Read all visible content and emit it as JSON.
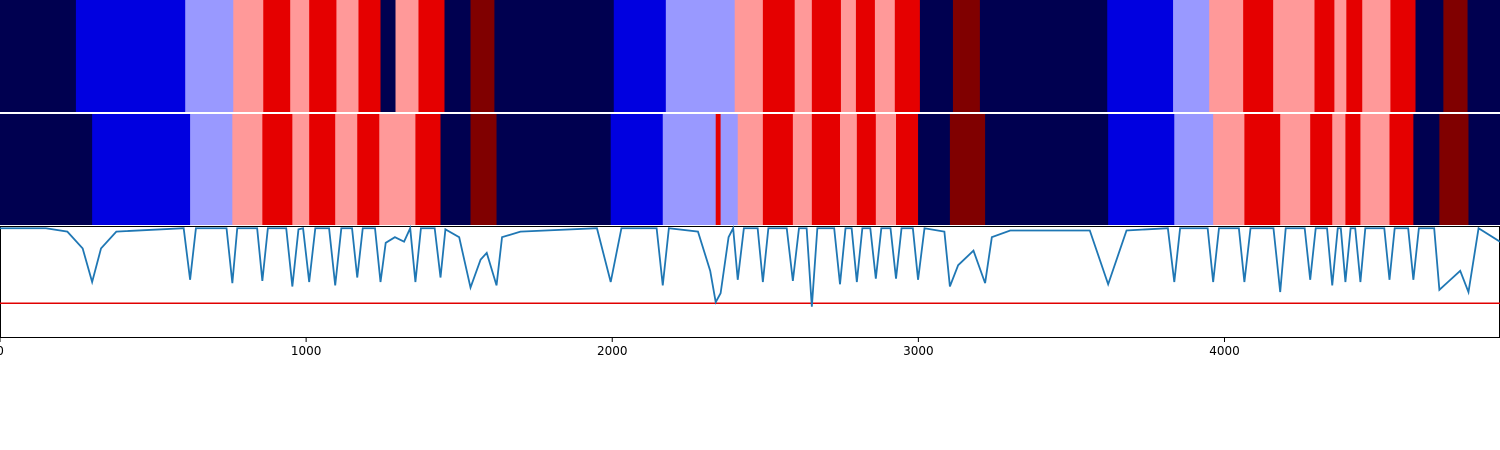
{
  "chart_data": [
    {
      "type": "segments",
      "state_colors": [
        "#000050",
        "#0000e0",
        "#9999ff",
        "#ff9999",
        "#e50000",
        "#800000"
      ],
      "xlim": [
        0,
        4900
      ],
      "boundaries": [
        0,
        248,
        605,
        762,
        860,
        948,
        1010,
        1099,
        1171,
        1243,
        1292,
        1367,
        1452,
        1537,
        1615,
        2005,
        2175,
        2400,
        2492,
        2596,
        2652,
        2747,
        2796,
        2858,
        2923,
        3005,
        3113,
        3201,
        3617,
        3832,
        3950,
        4061,
        4159,
        4294,
        4359,
        4398,
        4450,
        4542,
        4624,
        4715,
        4794,
        4900
      ],
      "states": [
        0,
        1,
        2,
        3,
        4,
        3,
        4,
        3,
        4,
        0,
        3,
        4,
        0,
        5,
        0,
        1,
        2,
        3,
        4,
        3,
        4,
        3,
        4,
        3,
        4,
        0,
        5,
        0,
        1,
        2,
        3,
        4,
        3,
        4,
        3,
        4,
        3,
        4,
        0,
        5,
        0
      ]
    },
    {
      "type": "segments",
      "state_colors": [
        "#000050",
        "#0000e0",
        "#9999ff",
        "#ff9999",
        "#e50000",
        "#800000"
      ],
      "xlim": [
        0,
        4900
      ],
      "boundaries": [
        0,
        301,
        621,
        759,
        857,
        955,
        1010,
        1095,
        1167,
        1239,
        1357,
        1439,
        1537,
        1622,
        1995,
        2165,
        2338,
        2354,
        2410,
        2492,
        2590,
        2652,
        2744,
        2799,
        2861,
        2927,
        2999,
        3103,
        3218,
        3620,
        3836,
        3963,
        4065,
        4182,
        4280,
        4352,
        4395,
        4444,
        4539,
        4617,
        4702,
        4797,
        4900
      ],
      "states": [
        0,
        1,
        2,
        3,
        4,
        3,
        4,
        3,
        4,
        3,
        4,
        0,
        5,
        0,
        1,
        2,
        4,
        2,
        3,
        4,
        3,
        4,
        3,
        4,
        3,
        4,
        0,
        5,
        0,
        1,
        2,
        3,
        4,
        3,
        4,
        3,
        4,
        3,
        4,
        0,
        5,
        0
      ]
    },
    {
      "type": "line",
      "xlim": [
        0,
        4900
      ],
      "ylim": [
        0,
        1
      ],
      "xticks": [
        0,
        1000,
        2000,
        3000,
        4000
      ],
      "color": "#1f77b4",
      "threshold": 0.31,
      "threshold_color": "#e00000",
      "x": [
        0,
        150,
        220,
        270,
        301,
        330,
        380,
        600,
        621,
        640,
        740,
        759,
        775,
        840,
        857,
        875,
        935,
        955,
        975,
        990,
        1010,
        1030,
        1075,
        1095,
        1115,
        1150,
        1167,
        1185,
        1225,
        1243,
        1260,
        1290,
        1320,
        1340,
        1357,
        1375,
        1420,
        1439,
        1455,
        1500,
        1537,
        1570,
        1590,
        1622,
        1640,
        1700,
        1950,
        1995,
        2030,
        2145,
        2165,
        2185,
        2280,
        2320,
        2338,
        2354,
        2380,
        2395,
        2410,
        2430,
        2475,
        2492,
        2510,
        2570,
        2590,
        2610,
        2635,
        2652,
        2670,
        2725,
        2744,
        2762,
        2782,
        2799,
        2817,
        2843,
        2861,
        2879,
        2909,
        2927,
        2945,
        2982,
        2999,
        3020,
        3085,
        3103,
        3130,
        3180,
        3218,
        3240,
        3300,
        3560,
        3620,
        3680,
        3815,
        3836,
        3855,
        3945,
        3963,
        3982,
        4047,
        4065,
        4085,
        4160,
        4182,
        4200,
        4262,
        4280,
        4298,
        4335,
        4352,
        4370,
        4380,
        4395,
        4412,
        4427,
        4444,
        4460,
        4522,
        4539,
        4556,
        4600,
        4617,
        4635,
        4685,
        4702,
        4730,
        4770,
        4797,
        4830,
        4900
      ],
      "values": [
        0.98,
        0.98,
        0.95,
        0.8,
        0.5,
        0.8,
        0.95,
        0.98,
        0.52,
        0.98,
        0.98,
        0.49,
        0.98,
        0.98,
        0.51,
        0.98,
        0.98,
        0.46,
        0.97,
        0.98,
        0.5,
        0.98,
        0.98,
        0.47,
        0.98,
        0.98,
        0.54,
        0.98,
        0.98,
        0.5,
        0.85,
        0.9,
        0.86,
        0.98,
        0.5,
        0.98,
        0.98,
        0.54,
        0.97,
        0.9,
        0.45,
        0.7,
        0.76,
        0.47,
        0.9,
        0.95,
        0.98,
        0.5,
        0.98,
        0.98,
        0.47,
        0.98,
        0.95,
        0.6,
        0.32,
        0.4,
        0.9,
        0.98,
        0.52,
        0.98,
        0.98,
        0.5,
        0.98,
        0.98,
        0.51,
        0.98,
        0.98,
        0.28,
        0.98,
        0.98,
        0.48,
        0.98,
        0.98,
        0.5,
        0.98,
        0.98,
        0.53,
        0.98,
        0.98,
        0.53,
        0.98,
        0.98,
        0.52,
        0.98,
        0.95,
        0.46,
        0.65,
        0.78,
        0.49,
        0.9,
        0.96,
        0.96,
        0.48,
        0.96,
        0.98,
        0.5,
        0.98,
        0.98,
        0.5,
        0.98,
        0.98,
        0.5,
        0.98,
        0.98,
        0.41,
        0.98,
        0.98,
        0.52,
        0.98,
        0.98,
        0.47,
        0.98,
        0.98,
        0.5,
        0.98,
        0.98,
        0.5,
        0.98,
        0.98,
        0.52,
        0.98,
        0.98,
        0.52,
        0.98,
        0.98,
        0.43,
        0.5,
        0.6,
        0.41,
        0.98,
        0.86
      ]
    }
  ]
}
